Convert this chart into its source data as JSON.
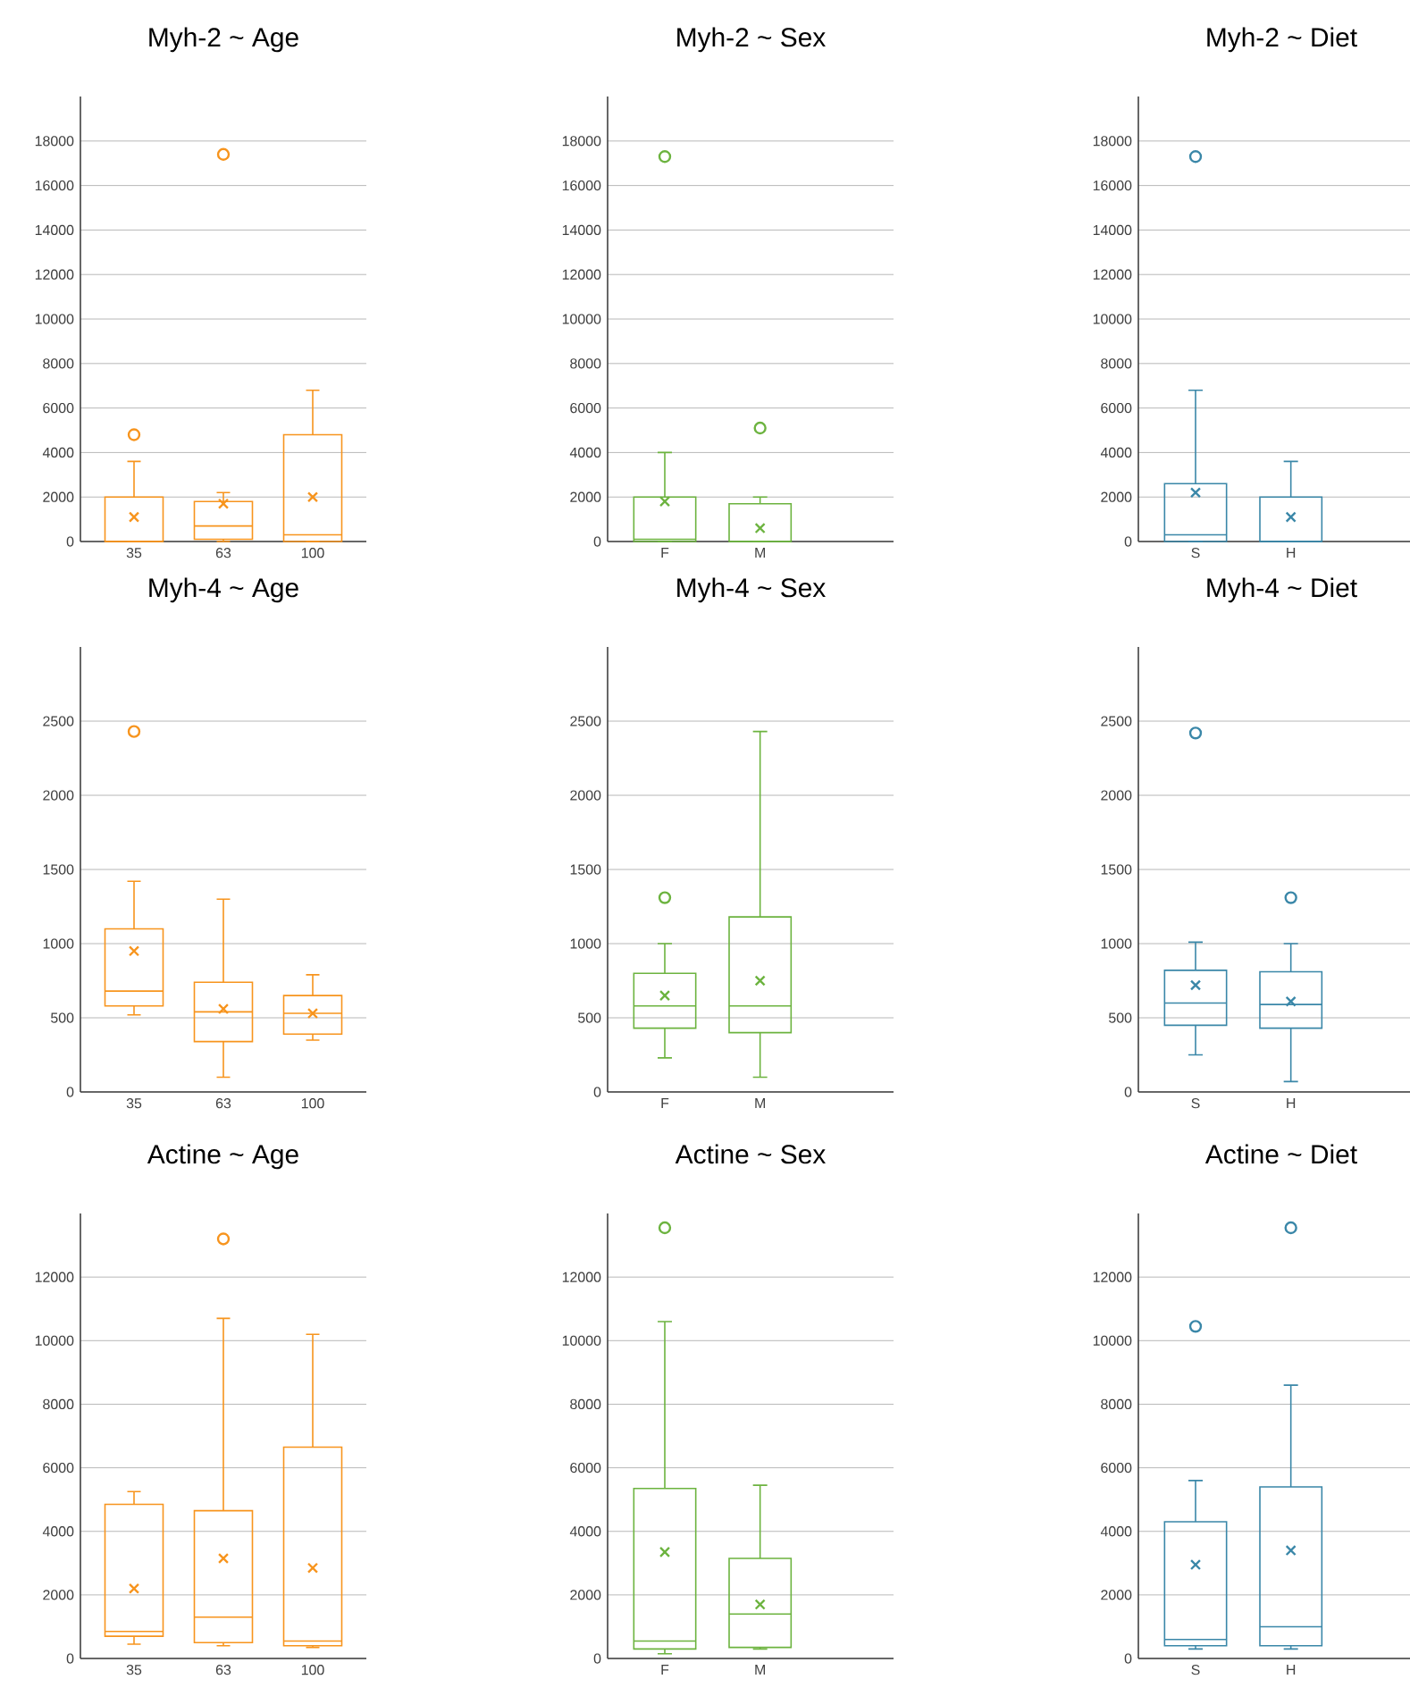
{
  "chart_data": [
    {
      "type": "box",
      "title": "Myh-2 ~ Age",
      "categories": [
        "35",
        "63",
        "100"
      ],
      "color": "#f7941d",
      "ylim": [
        0,
        20000
      ],
      "yticks": [
        0,
        2000,
        4000,
        6000,
        8000,
        10000,
        12000,
        14000,
        16000,
        18000
      ],
      "grid": "y",
      "boxes": [
        {
          "low": 0,
          "q1": 0,
          "median": 0,
          "q3": 2000,
          "high": 3600,
          "mean": 1100,
          "outliers": [
            4800
          ]
        },
        {
          "low": 0,
          "q1": 100,
          "median": 700,
          "q3": 1800,
          "high": 2200,
          "mean": 1700,
          "outliers": [
            17400
          ]
        },
        {
          "low": 0,
          "q1": 0,
          "median": 300,
          "q3": 4800,
          "high": 6800,
          "mean": 2000
        }
      ]
    },
    {
      "type": "box",
      "title": "Myh-2 ~ Sex",
      "categories": [
        "F",
        "M"
      ],
      "color": "#6cb33f",
      "ylim": [
        0,
        20000
      ],
      "yticks": [
        0,
        2000,
        4000,
        6000,
        8000,
        10000,
        12000,
        14000,
        16000,
        18000
      ],
      "grid": "y",
      "boxes": [
        {
          "low": 0,
          "q1": 0,
          "median": 100,
          "q3": 2000,
          "high": 4000,
          "mean": 1800,
          "outliers": [
            17300
          ]
        },
        {
          "low": 0,
          "q1": 0,
          "median": 0,
          "q3": 1700,
          "high": 2000,
          "mean": 600,
          "outliers": [
            5100
          ]
        }
      ]
    },
    {
      "type": "box",
      "title": "Myh-2 ~ Diet",
      "categories": [
        "S",
        "H"
      ],
      "color": "#3a87a8",
      "ylim": [
        0,
        20000
      ],
      "yticks": [
        0,
        2000,
        4000,
        6000,
        8000,
        10000,
        12000,
        14000,
        16000,
        18000
      ],
      "grid": "y",
      "boxes": [
        {
          "low": 0,
          "q1": 0,
          "median": 300,
          "q3": 2600,
          "high": 6800,
          "mean": 2200,
          "outliers": [
            17300
          ]
        },
        {
          "low": 0,
          "q1": 0,
          "median": 0,
          "q3": 2000,
          "high": 3600,
          "mean": 1100
        }
      ]
    },
    {
      "type": "box",
      "title": "Myh-4 ~ Age",
      "categories": [
        "35",
        "63",
        "100"
      ],
      "color": "#f7941d",
      "ylim": [
        0,
        3000
      ],
      "yticks": [
        0,
        500,
        1000,
        1500,
        2000,
        2500
      ],
      "grid": "y",
      "boxes": [
        {
          "low": 520,
          "q1": 580,
          "median": 680,
          "q3": 1100,
          "high": 1420,
          "mean": 950,
          "outliers": [
            2430
          ]
        },
        {
          "low": 100,
          "q1": 340,
          "median": 540,
          "q3": 740,
          "high": 1300,
          "mean": 560
        },
        {
          "low": 350,
          "q1": 390,
          "median": 530,
          "q3": 650,
          "high": 790,
          "mean": 530
        }
      ]
    },
    {
      "type": "box",
      "title": "Myh-4 ~ Sex",
      "categories": [
        "F",
        "M"
      ],
      "color": "#6cb33f",
      "ylim": [
        0,
        3000
      ],
      "yticks": [
        0,
        500,
        1000,
        1500,
        2000,
        2500
      ],
      "grid": "y",
      "boxes": [
        {
          "low": 230,
          "q1": 430,
          "median": 580,
          "q3": 800,
          "high": 1000,
          "mean": 650,
          "outliers": [
            1310
          ]
        },
        {
          "low": 100,
          "q1": 400,
          "median": 580,
          "q3": 1180,
          "high": 2430,
          "mean": 750
        }
      ]
    },
    {
      "type": "box",
      "title": "Myh-4 ~ Diet",
      "categories": [
        "S",
        "H"
      ],
      "color": "#3a87a8",
      "ylim": [
        0,
        3000
      ],
      "yticks": [
        0,
        500,
        1000,
        1500,
        2000,
        2500
      ],
      "grid": "y",
      "boxes": [
        {
          "low": 250,
          "q1": 450,
          "median": 600,
          "q3": 820,
          "high": 1010,
          "mean": 720,
          "outliers": [
            2420
          ]
        },
        {
          "low": 70,
          "q1": 430,
          "median": 590,
          "q3": 810,
          "high": 1000,
          "mean": 610,
          "outliers": [
            1310
          ]
        }
      ]
    },
    {
      "type": "box",
      "title": "Actine ~ Age",
      "categories": [
        "35",
        "63",
        "100"
      ],
      "color": "#f7941d",
      "ylim": [
        0,
        14000
      ],
      "yticks": [
        0,
        2000,
        4000,
        6000,
        8000,
        10000,
        12000
      ],
      "grid": "y",
      "boxes": [
        {
          "low": 450,
          "q1": 700,
          "median": 850,
          "q3": 4850,
          "high": 5250,
          "mean": 2200
        },
        {
          "low": 400,
          "q1": 500,
          "median": 1300,
          "q3": 4650,
          "high": 10700,
          "mean": 3150,
          "outliers": [
            13200
          ]
        },
        {
          "low": 350,
          "q1": 400,
          "median": 550,
          "q3": 6650,
          "high": 10200,
          "mean": 2850
        }
      ]
    },
    {
      "type": "box",
      "title": "Actine ~ Sex",
      "categories": [
        "F",
        "M"
      ],
      "color": "#6cb33f",
      "ylim": [
        0,
        14000
      ],
      "yticks": [
        0,
        2000,
        4000,
        6000,
        8000,
        10000,
        12000
      ],
      "grid": "y",
      "boxes": [
        {
          "low": 150,
          "q1": 300,
          "median": 550,
          "q3": 5350,
          "high": 10600,
          "mean": 3350,
          "outliers": [
            13550
          ]
        },
        {
          "low": 300,
          "q1": 350,
          "median": 1400,
          "q3": 3150,
          "high": 5450,
          "mean": 1700
        }
      ]
    },
    {
      "type": "box",
      "title": "Actine ~ Diet",
      "categories": [
        "S",
        "H"
      ],
      "color": "#3a87a8",
      "ylim": [
        0,
        14000
      ],
      "yticks": [
        0,
        2000,
        4000,
        6000,
        8000,
        10000,
        12000
      ],
      "grid": "y",
      "boxes": [
        {
          "low": 300,
          "q1": 400,
          "median": 600,
          "q3": 4300,
          "high": 5600,
          "mean": 2950,
          "outliers": [
            10450
          ]
        },
        {
          "low": 300,
          "q1": 400,
          "median": 1000,
          "q3": 5400,
          "high": 8600,
          "mean": 3400,
          "outliers": [
            13550
          ]
        }
      ]
    }
  ]
}
